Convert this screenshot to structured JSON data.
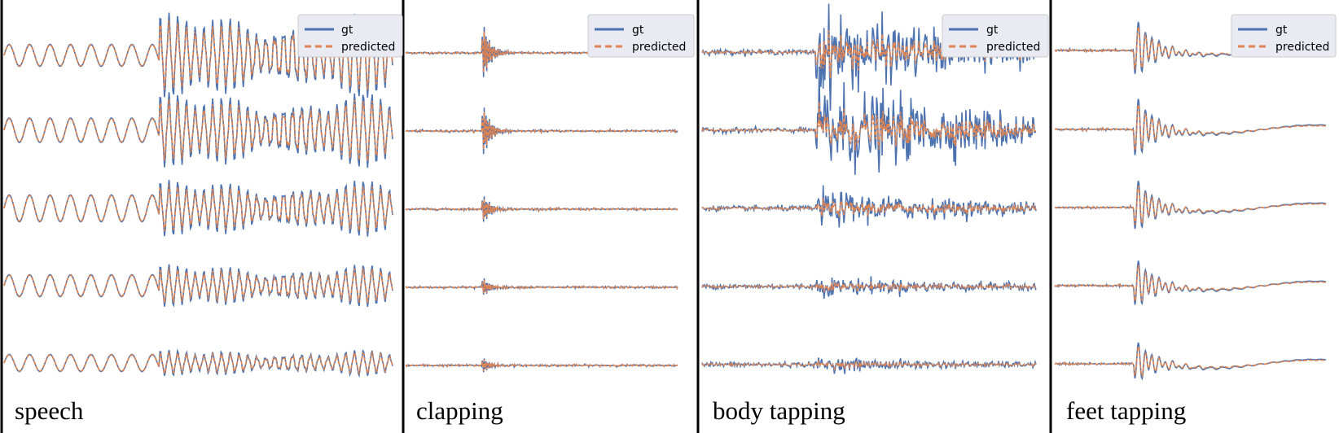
{
  "figure": {
    "legend": {
      "entries": [
        "gt",
        "predicted"
      ],
      "placement": "top-right"
    },
    "colors": {
      "gt": "#4c72b0",
      "predicted": "#dd8452",
      "divider": "#000000",
      "legend_bg": "#eaeaf2",
      "legend_border": "#cccccc"
    }
  },
  "chart_data": [
    {
      "type": "line",
      "title": "speech",
      "channels": 5,
      "series": [
        {
          "name": "gt"
        },
        {
          "name": "predicted"
        }
      ],
      "signal": {
        "kind": "oscillation",
        "early_amplitude": [
          0.45,
          0.5,
          0.55,
          0.45,
          0.35
        ],
        "late_amplitude": [
          1.8,
          1.6,
          1.2,
          0.9,
          0.55
        ]
      },
      "legend_placement": "top-right",
      "grid": false
    },
    {
      "type": "line",
      "title": "clapping",
      "channels": 5,
      "series": [
        {
          "name": "gt"
        },
        {
          "name": "predicted"
        }
      ],
      "signal": {
        "kind": "transient",
        "peak_amplitude": [
          1.5,
          1.4,
          0.8,
          0.5,
          0.4
        ]
      },
      "legend_placement": "top-right",
      "grid": false
    },
    {
      "type": "line",
      "title": "body tapping",
      "channels": 5,
      "series": [
        {
          "name": "gt"
        },
        {
          "name": "predicted"
        }
      ],
      "signal": {
        "kind": "noisy burst",
        "burst_amplitude": [
          1.3,
          1.5,
          0.55,
          0.3,
          0.22
        ]
      },
      "legend_placement": "top-right",
      "grid": false
    },
    {
      "type": "line",
      "title": "feet tapping",
      "channels": 5,
      "series": [
        {
          "name": "gt"
        },
        {
          "name": "predicted"
        }
      ],
      "signal": {
        "kind": "transient with slow drift",
        "peak_amplitude": [
          1.3,
          1.4,
          1.2,
          1.1,
          0.9
        ]
      },
      "legend_placement": "top-right",
      "grid": false
    }
  ]
}
